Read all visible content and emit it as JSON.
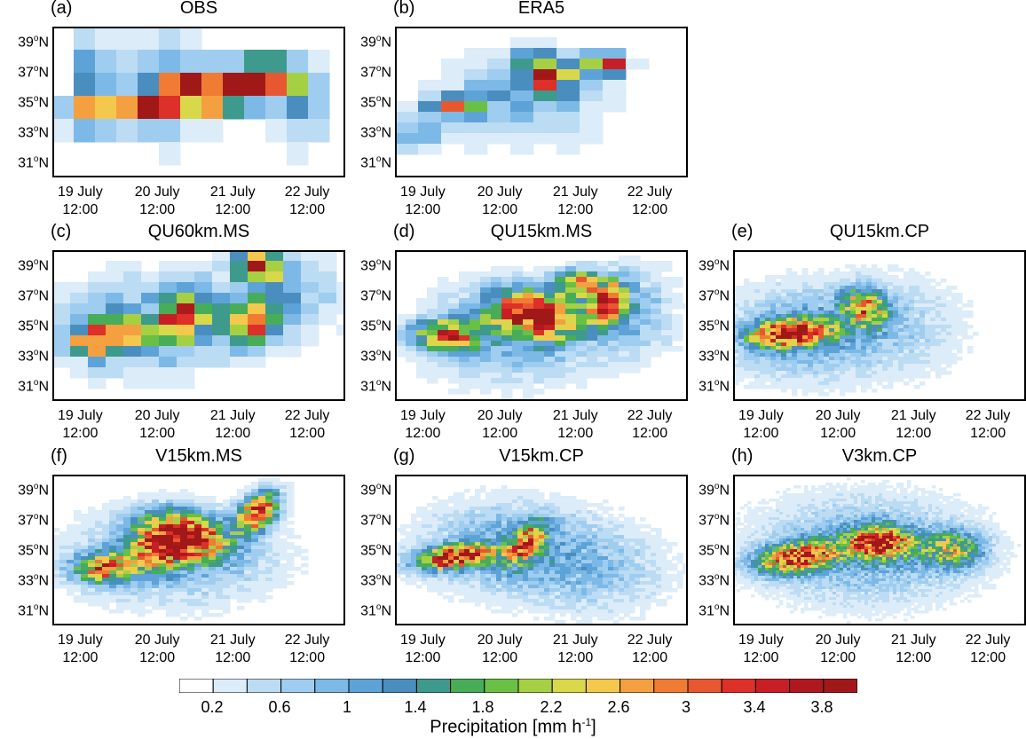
{
  "chart_data": {
    "type": "heatmap",
    "colorbar": {
      "title": "Precipitation [mm h",
      "title_sup": "-1",
      "title_end": "]",
      "levels": [
        0.2,
        0.6,
        1,
        1.4,
        1.8,
        2.2,
        2.6,
        3,
        3.4,
        3.8
      ],
      "level_labels": [
        "0.2",
        "0.6",
        "1",
        "1.4",
        "1.8",
        "2.2",
        "2.6",
        "3",
        "3.4",
        "3.8"
      ],
      "colors": [
        "#ffffff",
        "#dcecf8",
        "#bcdcf4",
        "#9fcdef",
        "#7db9e6",
        "#5da3d8",
        "#4a8ec0",
        "#3e9a8c",
        "#47ad58",
        "#6ac044",
        "#a6d044",
        "#d8d84a",
        "#f4c84c",
        "#f4a040",
        "#f07c34",
        "#e85830",
        "#dc3028",
        "#c81e26",
        "#b01820",
        "#a01818"
      ]
    },
    "y_ticks": [
      "31",
      "33",
      "35",
      "37",
      "39"
    ],
    "y_suffix": "N",
    "y_degree": "o",
    "y_range": [
      30,
      40
    ],
    "x_ticks": [
      {
        "day": "19 July",
        "time": "12:00"
      },
      {
        "day": "20 July",
        "time": "12:00"
      },
      {
        "day": "21 July",
        "time": "12:00"
      },
      {
        "day": "22 July",
        "time": "12:00"
      }
    ],
    "panels": [
      {
        "label": "(a)",
        "title": "OBS"
      },
      {
        "label": "(b)",
        "title": "ERA5"
      },
      {
        "label": "(c)",
        "title": "QU60km.MS"
      },
      {
        "label": "(d)",
        "title": "QU15km.MS"
      },
      {
        "label": "(e)",
        "title": "QU15km.CP"
      },
      {
        "label": "(f)",
        "title": "V15km.MS"
      },
      {
        "label": "(g)",
        "title": "V15km.CP"
      },
      {
        "label": "(h)",
        "title": "V3km.CP"
      }
    ]
  }
}
